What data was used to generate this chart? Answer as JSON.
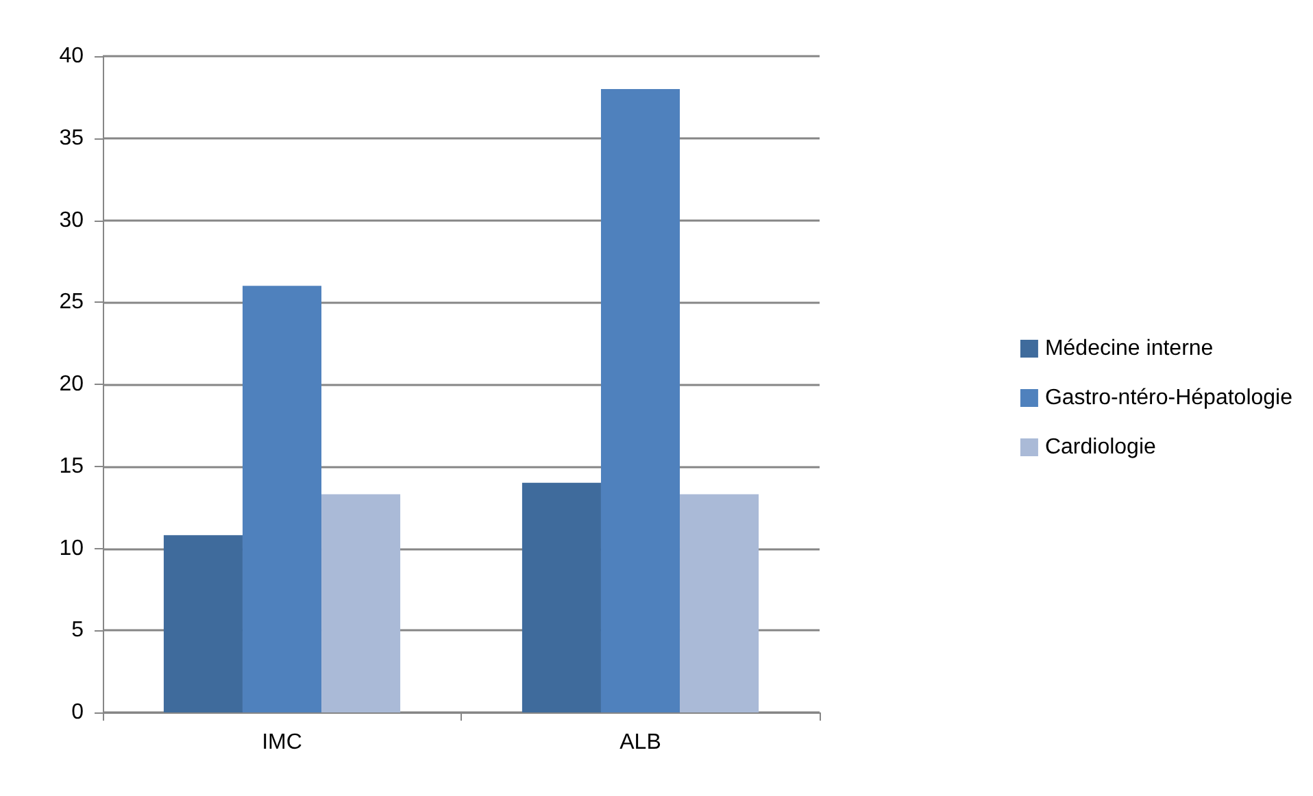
{
  "chart_data": {
    "type": "bar",
    "categories": [
      "IMC",
      "ALB"
    ],
    "series": [
      {
        "name": "Médecine interne",
        "color": "#3f6b9c",
        "values": [
          10.8,
          14
        ]
      },
      {
        "name": "Gastro-ntéro-Hépatologie",
        "color": "#4f81bd",
        "values": [
          26,
          38
        ]
      },
      {
        "name": "Cardiologie",
        "color": "#aabad7",
        "values": [
          13.3,
          13.3
        ]
      }
    ],
    "ylim": [
      0,
      40
    ],
    "yticks": [
      0,
      5,
      10,
      15,
      20,
      25,
      30,
      35,
      40
    ],
    "grid": "y",
    "legend": "right"
  }
}
